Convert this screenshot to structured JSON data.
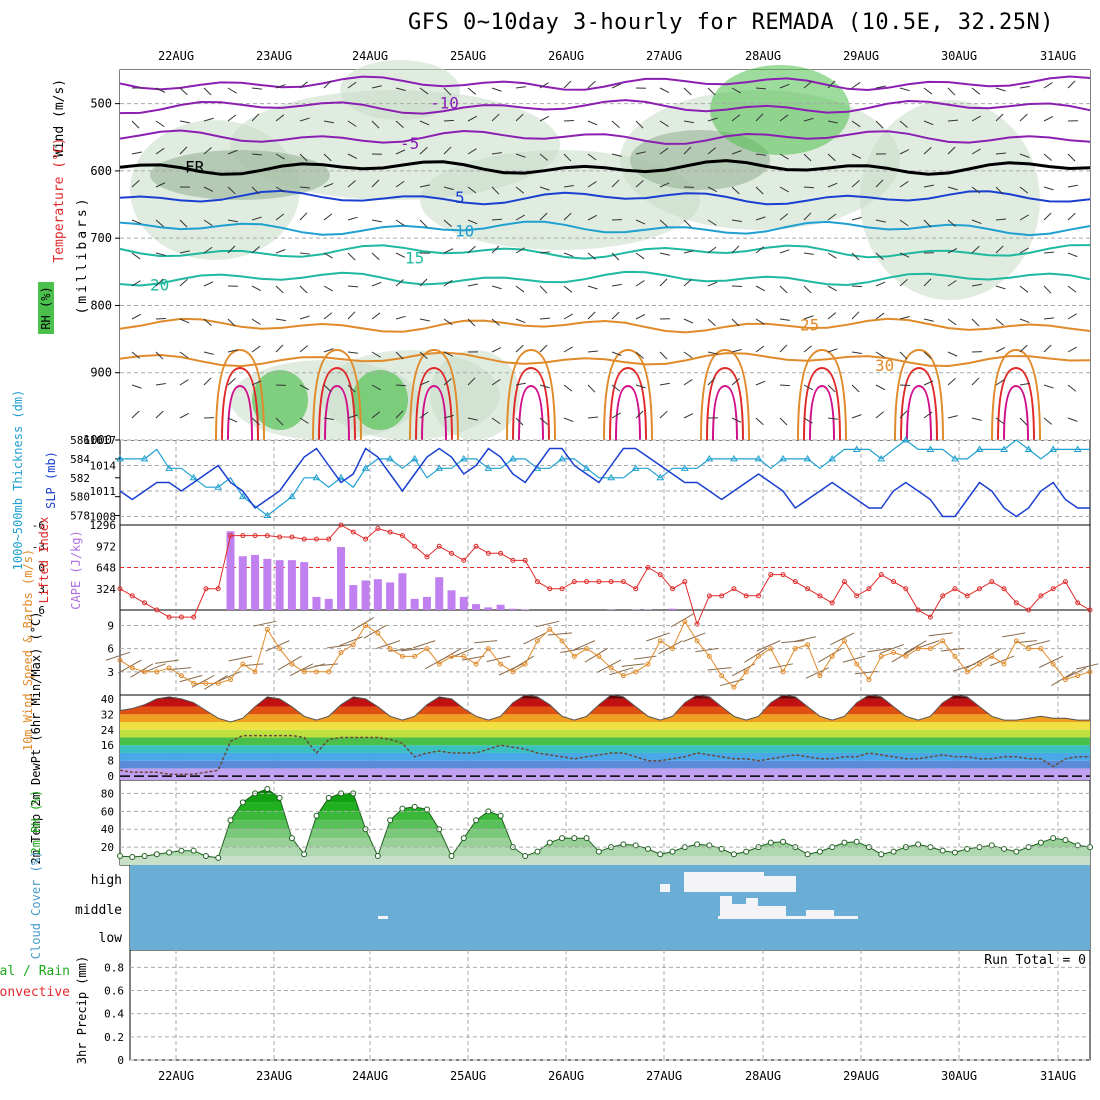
{
  "title": "GFS 0~10day 3-hourly for REMADA (10.5E, 32.25N)",
  "colors": {
    "purple": "#8a1fb2",
    "blue": "#1a3fd0",
    "cyan": "#1fa0d0",
    "teal": "#1fb8a0",
    "orange": "#e08a2a",
    "red": "#e02a2a",
    "magenta": "#d0108a",
    "green": "#1fa81f",
    "cape": "#c080f0",
    "cloud_bg": "#6aaed6",
    "brown": "#8a6a4a"
  },
  "days": [
    "22AUG",
    "23AUG",
    "24AUG",
    "25AUG",
    "26AUG",
    "27AUG",
    "28AUG",
    "29AUG",
    "30AUG",
    "31AUG"
  ],
  "chart_data": [
    {
      "type": "heatmap",
      "panel": "pressure-cross-section",
      "ylabel_parts": [
        "Wind (m/s)",
        "Temperature (°C)"
      ],
      "ylabel_units": "(millibars)",
      "rh_label": "RH (%)",
      "yticks": [
        500,
        600,
        700,
        800,
        900,
        1000
      ],
      "ylim": [
        1000,
        450
      ],
      "isotherm_labels": [
        {
          "text": "-10",
          "level": 500
        },
        {
          "text": "-5",
          "level": 560
        },
        {
          "text": "FR",
          "level": 595
        },
        {
          "text": "5",
          "level": 640
        },
        {
          "text": "10",
          "level": 690
        },
        {
          "text": "15",
          "level": 730
        },
        {
          "text": "20",
          "level": 770
        },
        {
          "text": "25",
          "level": 830
        },
        {
          "text": "30",
          "level": 890
        }
      ]
    },
    {
      "type": "line",
      "panel": "thickness-slp",
      "ylabel": "1000~500mb Thickness (dm)",
      "ylabel2": "SLP (mb)",
      "yticks_left": [
        578,
        580,
        582,
        584,
        586
      ],
      "yticks_right": [
        1008,
        1011,
        1014,
        1017
      ],
      "series": [
        {
          "name": "Thickness",
          "values": [
            584,
            584,
            584,
            585,
            583,
            583,
            582,
            581,
            581,
            582,
            580,
            579,
            578,
            579,
            580,
            582,
            582,
            581,
            582,
            581,
            583,
            584,
            584,
            583,
            584,
            582,
            583,
            583,
            584,
            584,
            583,
            583,
            584,
            584,
            583,
            583,
            584,
            584,
            583,
            582,
            582,
            582,
            583,
            583,
            582,
            583,
            583,
            583,
            584,
            584,
            584,
            584,
            584,
            583,
            584,
            584,
            584,
            583,
            584,
            585,
            585,
            585,
            584,
            585,
            586,
            585,
            585,
            585,
            584,
            584,
            585,
            585,
            585,
            586,
            585,
            584,
            585,
            585,
            585,
            585
          ]
        },
        {
          "name": "SLP",
          "values": [
            1011,
            1010,
            1011,
            1012,
            1012,
            1011,
            1012,
            1013,
            1014,
            1012,
            1011,
            1009,
            1010,
            1011,
            1013,
            1015,
            1016,
            1014,
            1012,
            1013,
            1016,
            1015,
            1013,
            1011,
            1013,
            1015,
            1016,
            1015,
            1013,
            1014,
            1016,
            1015,
            1013,
            1012,
            1014,
            1016,
            1016,
            1014,
            1013,
            1012,
            1014,
            1016,
            1016,
            1015,
            1014,
            1013,
            1012,
            1012,
            1011,
            1010,
            1011,
            1012,
            1013,
            1012,
            1011,
            1009,
            1010,
            1011,
            1012,
            1011,
            1010,
            1009,
            1009,
            1011,
            1012,
            1011,
            1010,
            1008,
            1008,
            1010,
            1012,
            1011,
            1009,
            1008,
            1009,
            1011,
            1012,
            1010,
            1009,
            1009
          ]
        }
      ]
    },
    {
      "type": "bar",
      "panel": "lifted-index-cape",
      "ylabel": "Lifted Index",
      "ylabel2": "CAPE (J/kg)",
      "yticks_left": [
        -6,
        -3,
        0,
        3,
        6
      ],
      "yticks_right": [
        324,
        648,
        972,
        1296
      ],
      "cape_values": [
        0,
        0,
        0,
        0,
        0,
        0,
        0,
        0,
        0,
        1200,
        820,
        840,
        780,
        760,
        760,
        730,
        200,
        170,
        960,
        380,
        450,
        470,
        420,
        560,
        170,
        200,
        500,
        300,
        200,
        90,
        40,
        80,
        20,
        10,
        0,
        0,
        0,
        0,
        0,
        0,
        5,
        0,
        5,
        5,
        0,
        20,
        0,
        0,
        0,
        0,
        0,
        0,
        0,
        0,
        0,
        0,
        0,
        0,
        0,
        0,
        0,
        0,
        0,
        0,
        0,
        0,
        0,
        0,
        0,
        0,
        0,
        0,
        0,
        0,
        0,
        0,
        0,
        0,
        0,
        0
      ],
      "li_values": [
        3,
        4,
        5,
        6,
        7,
        7,
        7,
        3,
        3,
        -4.5,
        -4.5,
        -4.5,
        -4.5,
        -4.3,
        -4.3,
        -4,
        -4,
        -4,
        -6,
        -5,
        -4,
        -5.5,
        -5,
        -4.5,
        -3,
        -1.5,
        -3,
        -2,
        -1,
        -3,
        -2,
        -2,
        -1,
        -1,
        2,
        3,
        3,
        2,
        2,
        2,
        2,
        2,
        3,
        0,
        1,
        3,
        2,
        8,
        4,
        4,
        3,
        4,
        4,
        1,
        1,
        2,
        3,
        4,
        5,
        2,
        4,
        3,
        1,
        2,
        3,
        6,
        7,
        4,
        3,
        4,
        3,
        2,
        3,
        5,
        6,
        4,
        3,
        2,
        5,
        6
      ]
    },
    {
      "type": "line",
      "panel": "wind-10m",
      "ylabel": "10m Wind Speed & Barbs (m/s)",
      "yticks": [
        3,
        6,
        9
      ],
      "values": [
        4.5,
        3.5,
        3,
        3,
        3.5,
        2.5,
        1.5,
        1.5,
        1.5,
        2,
        4,
        3,
        8.5,
        6,
        4,
        3,
        3,
        3,
        5.5,
        6.5,
        9,
        8,
        6,
        5,
        5,
        6,
        4,
        5,
        5,
        4,
        6,
        4,
        3,
        4,
        7,
        8.5,
        7,
        5,
        6,
        5,
        3.5,
        2.5,
        3,
        4,
        7,
        6,
        9.5,
        7,
        5,
        2.5,
        1,
        3,
        5,
        6,
        3,
        6,
        6.5,
        2.5,
        5,
        7,
        4,
        2,
        5,
        5.5,
        5,
        6,
        6,
        7,
        5,
        3,
        4,
        5,
        4,
        7,
        6,
        6,
        4,
        2,
        2.5,
        3
      ]
    },
    {
      "type": "area",
      "panel": "temp-2m",
      "ylabel": "2m Temp 2m DewPt (6hr Min/Max) (°C)",
      "yticks": [
        0,
        8,
        16,
        24,
        32,
        40
      ],
      "temp": [
        34,
        35,
        37,
        40,
        41,
        40,
        38,
        34,
        30,
        28,
        30,
        36,
        41,
        40,
        36,
        31,
        29,
        31,
        37,
        41,
        40,
        36,
        31,
        29,
        31,
        37,
        41,
        40,
        35,
        31,
        29,
        31,
        38,
        42,
        41,
        37,
        31,
        29,
        31,
        37,
        42,
        41,
        36,
        31,
        29,
        31,
        38,
        42,
        41,
        36,
        31,
        29,
        31,
        38,
        42,
        41,
        36,
        31,
        29,
        31,
        38,
        42,
        41,
        36,
        31,
        29,
        31,
        38,
        42,
        41,
        36,
        31,
        29,
        29,
        30,
        31,
        30,
        30,
        29,
        29
      ],
      "dewpt": [
        3,
        2,
        2,
        2,
        1,
        1,
        1,
        2,
        3,
        18,
        21,
        21,
        21,
        21,
        21,
        20,
        12,
        19,
        20,
        20,
        20,
        20,
        19,
        17,
        10,
        12,
        13,
        12,
        12,
        12,
        14,
        16,
        15,
        14,
        12,
        11,
        10,
        9,
        10,
        11,
        12,
        12,
        10,
        8,
        8,
        9,
        10,
        12,
        11,
        10,
        9,
        9,
        8,
        9,
        10,
        11,
        10,
        9,
        9,
        10,
        10,
        12,
        11,
        10,
        9,
        9,
        10,
        11,
        10,
        10,
        9,
        9,
        10,
        10,
        9,
        9,
        5,
        9,
        10,
        10
      ]
    },
    {
      "type": "area",
      "panel": "rh-2m",
      "ylabel": "2m RH (%)",
      "yticks": [
        20,
        40,
        60,
        80
      ],
      "values": [
        10,
        9,
        10,
        12,
        14,
        16,
        16,
        10,
        8,
        50,
        70,
        80,
        85,
        75,
        30,
        12,
        55,
        75,
        80,
        80,
        40,
        10,
        50,
        63,
        65,
        62,
        40,
        10,
        30,
        50,
        60,
        55,
        20,
        10,
        15,
        25,
        30,
        30,
        30,
        15,
        20,
        23,
        22,
        18,
        12,
        15,
        20,
        23,
        22,
        18,
        12,
        15,
        20,
        25,
        26,
        20,
        12,
        15,
        20,
        25,
        26,
        20,
        12,
        15,
        20,
        23,
        20,
        16,
        14,
        18,
        20,
        22,
        18,
        15,
        20,
        25,
        30,
        28,
        22,
        20
      ]
    },
    {
      "type": "heatmap",
      "panel": "cloud-cover",
      "ylabel": "Cloud Cover (%)",
      "yticks": [
        "high",
        "middle",
        "low"
      ]
    },
    {
      "type": "bar",
      "panel": "precip-3hr",
      "ylabel": "3hr Precip (mm)",
      "ylabel2": "Total / Rain",
      "ylabel3": "Convective",
      "run_total": "Run Total = 0",
      "yticks": [
        0,
        0.2,
        0.4,
        0.6,
        0.8
      ],
      "values": []
    }
  ]
}
